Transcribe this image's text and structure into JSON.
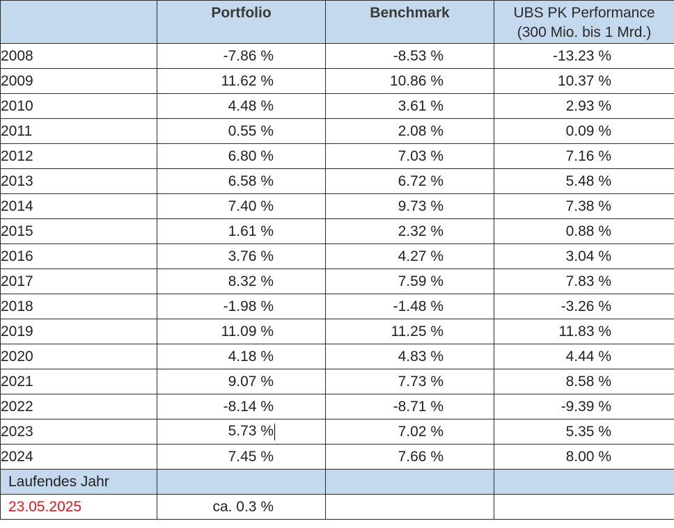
{
  "table": {
    "headers": {
      "year": "",
      "portfolio": "Portfolio",
      "benchmark": "Benchmark",
      "ubs_line1": "UBS PK Performance",
      "ubs_line2": "(300 Mio. bis 1 Mrd.)"
    },
    "rows": [
      {
        "year": "2008",
        "portfolio": "-7.86 %",
        "benchmark": "-8.53 %",
        "ubs": "-13.23 %"
      },
      {
        "year": "2009",
        "portfolio": "11.62 %",
        "benchmark": "10.86 %",
        "ubs": "10.37 %"
      },
      {
        "year": "2010",
        "portfolio": "4.48 %",
        "benchmark": "3.61 %",
        "ubs": "2.93 %"
      },
      {
        "year": "2011",
        "portfolio": "0.55 %",
        "benchmark": "2.08 %",
        "ubs": "0.09 %"
      },
      {
        "year": "2012",
        "portfolio": "6.80 %",
        "benchmark": "7.03 %",
        "ubs": "7.16 %"
      },
      {
        "year": "2013",
        "portfolio": "6.58 %",
        "benchmark": "6.72 %",
        "ubs": "5.48 %"
      },
      {
        "year": "2014",
        "portfolio": "7.40 %",
        "benchmark": "9.73 %",
        "ubs": "7.38 %"
      },
      {
        "year": "2015",
        "portfolio": "1.61 %",
        "benchmark": "2.32 %",
        "ubs": "0.88 %"
      },
      {
        "year": "2016",
        "portfolio": "3.76 %",
        "benchmark": "4.27 %",
        "ubs": "3.04 %"
      },
      {
        "year": "2017",
        "portfolio": "8.32 %",
        "benchmark": "7.59 %",
        "ubs": "7.83 %"
      },
      {
        "year": "2018",
        "portfolio": "-1.98 %",
        "benchmark": "-1.48 %",
        "ubs": "-3.26 %"
      },
      {
        "year": "2019",
        "portfolio": "11.09 %",
        "benchmark": "11.25 %",
        "ubs": "11.83 %"
      },
      {
        "year": "2020",
        "portfolio": "4.18 %",
        "benchmark": "4.83 %",
        "ubs": "4.44 %"
      },
      {
        "year": "2021",
        "portfolio": "9.07 %",
        "benchmark": "7.73 %",
        "ubs": "8.58 %"
      },
      {
        "year": "2022",
        "portfolio": "-8.14 %",
        "benchmark": "-8.71 %",
        "ubs": "-9.39 %"
      },
      {
        "year": "2023",
        "portfolio": "5.73 %",
        "benchmark": "7.02 %",
        "ubs": "5.35 %"
      },
      {
        "year": "2024",
        "portfolio": "7.45 %",
        "benchmark": "7.66 %",
        "ubs": "8.00 %"
      }
    ],
    "current_year": {
      "label": "Laufendes Jahr",
      "date": "23.05.2025",
      "portfolio": "ca. 0.3 %"
    }
  },
  "colors": {
    "header_bg": "#c4d8ee",
    "date_color": "#e0141e",
    "border": "#2b2b2b"
  }
}
